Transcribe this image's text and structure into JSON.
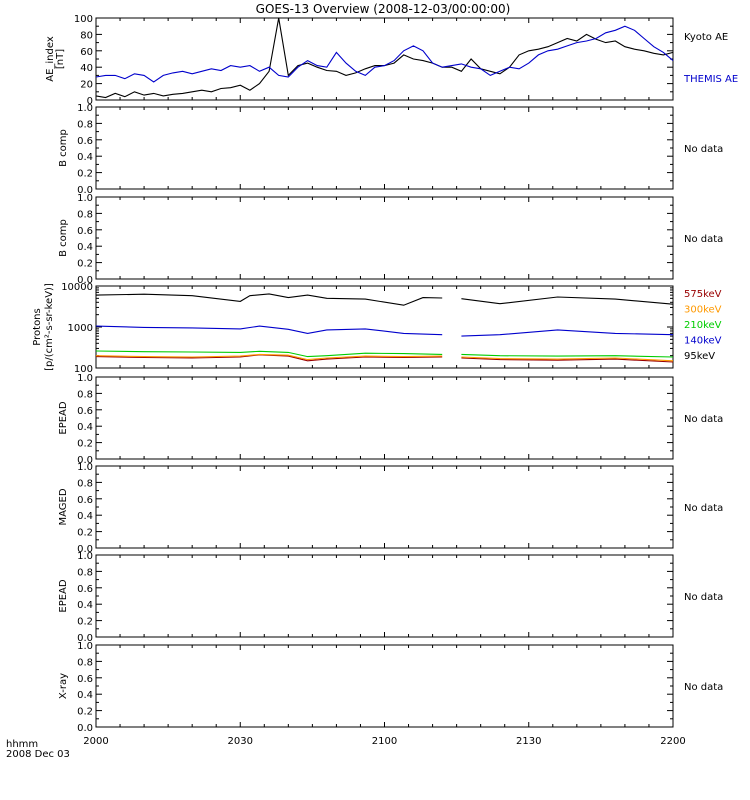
{
  "title": "GOES-13 Overview (2008-12-03/00:00:00)",
  "x_axis": {
    "corner_label_line1": "hhmm",
    "corner_label_line2": "2008 Dec 03",
    "ticks": [
      "2000",
      "2030",
      "2100",
      "2130",
      "2200"
    ]
  },
  "chart_data": [
    {
      "type": "line",
      "ylabel_line1": "AE_index",
      "ylabel_line2": "[nT]",
      "ylim": [
        0,
        100
      ],
      "yticks": [
        "0",
        "20",
        "40",
        "60",
        "80",
        "100"
      ],
      "series": [
        {
          "name": "Kyoto AE",
          "color": "#000000",
          "x_minutes": [
            0,
            2,
            4,
            6,
            8,
            10,
            12,
            14,
            16,
            18,
            20,
            22,
            24,
            26,
            28,
            30,
            32,
            34,
            36,
            38,
            40,
            42,
            44,
            46,
            48,
            50,
            52,
            54,
            56,
            58,
            60,
            62,
            64,
            66,
            68,
            70,
            72,
            74,
            76,
            78,
            80,
            82,
            84,
            86,
            88,
            90,
            92,
            94,
            96,
            98,
            100,
            102,
            104,
            106,
            108,
            110,
            112,
            114,
            116,
            118,
            120
          ],
          "values": [
            5,
            3,
            8,
            4,
            10,
            6,
            8,
            5,
            7,
            8,
            10,
            12,
            10,
            14,
            15,
            18,
            12,
            20,
            35,
            100,
            30,
            42,
            45,
            40,
            36,
            35,
            30,
            33,
            38,
            42,
            42,
            45,
            55,
            50,
            48,
            45,
            40,
            40,
            35,
            50,
            38,
            35,
            32,
            40,
            55,
            60,
            62,
            65,
            70,
            75,
            72,
            80,
            74,
            70,
            72,
            65,
            62,
            60,
            57,
            55,
            58
          ]
        },
        {
          "name": "THEMIS AE",
          "color": "#0000cc",
          "x_minutes": [
            0,
            2,
            4,
            6,
            8,
            10,
            12,
            14,
            16,
            18,
            20,
            22,
            24,
            26,
            28,
            30,
            32,
            34,
            36,
            38,
            40,
            42,
            44,
            46,
            48,
            50,
            52,
            54,
            56,
            58,
            60,
            62,
            64,
            66,
            68,
            70,
            72,
            74,
            76,
            78,
            80,
            82,
            84,
            86,
            88,
            90,
            92,
            94,
            96,
            98,
            100,
            102,
            104,
            106,
            108,
            110,
            112,
            114,
            116,
            118,
            120
          ],
          "values": [
            28,
            30,
            30,
            26,
            32,
            30,
            22,
            30,
            33,
            35,
            32,
            35,
            38,
            36,
            42,
            40,
            42,
            35,
            40,
            30,
            28,
            40,
            48,
            42,
            40,
            58,
            45,
            35,
            30,
            40,
            42,
            48,
            60,
            66,
            60,
            45,
            40,
            42,
            44,
            40,
            38,
            30,
            35,
            40,
            38,
            45,
            55,
            60,
            62,
            66,
            70,
            72,
            75,
            82,
            85,
            90,
            85,
            75,
            65,
            58,
            48
          ]
        }
      ]
    },
    {
      "type": "line",
      "ylabel": "B comp",
      "ylim": [
        0,
        1
      ],
      "yticks": [
        "0.0",
        "0.2",
        "0.4",
        "0.6",
        "0.8",
        "1.0"
      ],
      "status": "No data"
    },
    {
      "type": "line",
      "ylabel": "B comp",
      "ylim": [
        0,
        1
      ],
      "yticks": [
        "0.0",
        "0.2",
        "0.4",
        "0.6",
        "0.8",
        "1.0"
      ],
      "status": "No data"
    },
    {
      "type": "line",
      "ylabel_line1": "Protons",
      "ylabel_line2": "[p/(cm²-s-sr-keV)]",
      "yscale": "log",
      "ylim": [
        100,
        10000
      ],
      "yticks": [
        "100",
        "1000",
        "10000"
      ],
      "gap_minutes": [
        73,
        75
      ],
      "series": [
        {
          "name": "575keV",
          "color": "#990000",
          "x_minutes": [
            0,
            10,
            20,
            30,
            34,
            40,
            44,
            48,
            56,
            64,
            72,
            76,
            84,
            96,
            108,
            120
          ],
          "values": [
            190,
            180,
            175,
            185,
            210,
            195,
            150,
            165,
            185,
            180,
            185,
            175,
            160,
            155,
            165,
            140
          ]
        },
        {
          "name": "300keV",
          "color": "#ff9900",
          "x_minutes": [
            0,
            10,
            20,
            30,
            34,
            40,
            44,
            48,
            56,
            64,
            72,
            76,
            84,
            96,
            108,
            120
          ],
          "values": [
            200,
            190,
            185,
            195,
            215,
            205,
            160,
            175,
            195,
            190,
            195,
            185,
            170,
            165,
            175,
            150
          ]
        },
        {
          "name": "210keV",
          "color": "#00cc00",
          "x_minutes": [
            0,
            10,
            20,
            30,
            34,
            40,
            44,
            48,
            56,
            64,
            72,
            76,
            84,
            96,
            108,
            120
          ],
          "values": [
            260,
            250,
            245,
            240,
            255,
            240,
            190,
            200,
            230,
            225,
            215,
            215,
            200,
            195,
            200,
            185
          ]
        },
        {
          "name": "140keV",
          "color": "#0000cc",
          "x_minutes": [
            0,
            10,
            20,
            30,
            34,
            40,
            44,
            48,
            56,
            64,
            72,
            76,
            84,
            96,
            108,
            120
          ],
          "values": [
            1050,
            980,
            950,
            900,
            1050,
            880,
            700,
            850,
            900,
            700,
            650,
            600,
            650,
            850,
            700,
            650
          ]
        },
        {
          "name": "95keV",
          "color": "#000000",
          "x_minutes": [
            0,
            10,
            20,
            30,
            32,
            36,
            40,
            44,
            48,
            56,
            64,
            68,
            72,
            76,
            84,
            96,
            108,
            120
          ],
          "values": [
            6000,
            6300,
            5800,
            4200,
            5800,
            6400,
            5200,
            6000,
            5000,
            4800,
            3400,
            5200,
            5100,
            4900,
            3700,
            5400,
            4800,
            3600
          ]
        }
      ]
    },
    {
      "type": "line",
      "ylabel": "EPEAD",
      "ylim": [
        0,
        1
      ],
      "yticks": [
        "0.0",
        "0.2",
        "0.4",
        "0.6",
        "0.8",
        "1.0"
      ],
      "status": "No data"
    },
    {
      "type": "line",
      "ylabel": "MAGED",
      "ylim": [
        0,
        1
      ],
      "yticks": [
        "0.0",
        "0.2",
        "0.4",
        "0.6",
        "0.8",
        "1.0"
      ],
      "status": "No data"
    },
    {
      "type": "line",
      "ylabel": "EPEAD",
      "ylim": [
        0,
        1
      ],
      "yticks": [
        "0.0",
        "0.2",
        "0.4",
        "0.6",
        "0.8",
        "1.0"
      ],
      "status": "No data"
    },
    {
      "type": "line",
      "ylabel": "X-ray",
      "ylim": [
        0,
        1
      ],
      "yticks": [
        "0.0",
        "0.2",
        "0.4",
        "0.6",
        "0.8",
        "1.0"
      ],
      "status": "No data"
    }
  ]
}
